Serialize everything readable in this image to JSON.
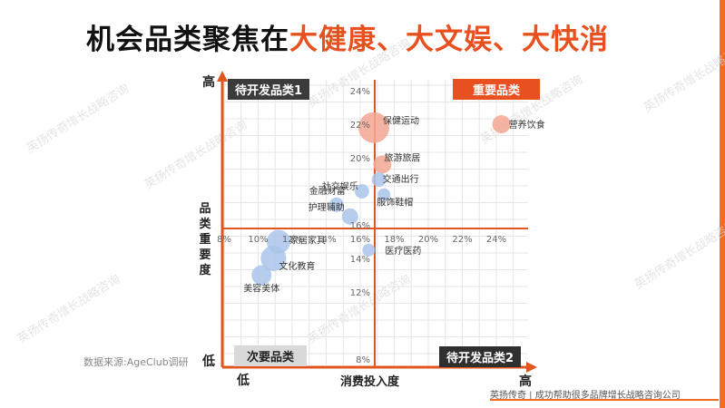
{
  "title": {
    "prefix": "机会品类聚焦在",
    "accent": "大健康、大文娱、大快消"
  },
  "watermark": "英扬传奇增长战略咨询",
  "axis_words": {
    "y_high": "高",
    "y_low": "低",
    "x_low": "低",
    "x_high": "高"
  },
  "xlabel": "消费投入度",
  "ylabel": "品类重要度",
  "quadrant_labels": {
    "top_left": "待开发品类1",
    "top_right": "重要品类",
    "bottom_left": "次要品类",
    "bottom_right": "待开发品类2"
  },
  "source": "数据来源:AgeClub调研",
  "footer": "英扬传奇 | 成功帮助很多品牌增长战略咨询公司",
  "colors": {
    "accent": "#e8501f",
    "axis": "#e0561e",
    "bubble_blue": "#aac4ea",
    "bubble_pink": "#f3a793",
    "dark_label": "#3b3b3b",
    "grey_label": "#d9d9d9"
  },
  "chart_data": {
    "type": "scatter",
    "xlabel": "消费投入度",
    "ylabel": "品类重要度",
    "xlim": [
      8,
      25
    ],
    "ylim": [
      7.5,
      25
    ],
    "x_ticks": [
      "8%",
      "10%",
      "12%",
      "14%",
      "16%",
      "18%",
      "20%",
      "22%",
      "24%"
    ],
    "x_tick_values": [
      8,
      10,
      12,
      14,
      16,
      18,
      20,
      22,
      24
    ],
    "y_ticks": [
      "8%",
      "12%",
      "14%",
      "16%",
      "20%",
      "22%",
      "24%"
    ],
    "y_tick_values": [
      8,
      12,
      14,
      16,
      20,
      22,
      24
    ],
    "grid": true,
    "points": [
      {
        "label": "保健运动",
        "x": 16.8,
        "y": 21.8,
        "size": 17,
        "color": "pink"
      },
      {
        "label": "营养饮食",
        "x": 24.3,
        "y": 22.0,
        "size": 10,
        "color": "pink"
      },
      {
        "label": "旅游旅居",
        "x": 17.3,
        "y": 19.6,
        "size": 10,
        "color": "pink"
      },
      {
        "label": "交通出行",
        "x": 17.1,
        "y": 18.7,
        "size": 8,
        "color": "blue"
      },
      {
        "label": "社交娱乐",
        "x": 16.1,
        "y": 18.0,
        "size": 8,
        "color": "blue"
      },
      {
        "label": "金融财富",
        "x": 14.6,
        "y": 17.2,
        "size": 8,
        "color": "blue"
      },
      {
        "label": "护理辅助",
        "x": 15.4,
        "y": 16.5,
        "size": 9,
        "color": "blue"
      },
      {
        "label": "服饰鞋帽",
        "x": 17.4,
        "y": 17.8,
        "size": 7,
        "color": "blue"
      },
      {
        "label": "家居家具",
        "x": 11.2,
        "y": 15.0,
        "size": 13,
        "color": "blue"
      },
      {
        "label": "文化教育",
        "x": 10.9,
        "y": 14.0,
        "size": 14,
        "color": "blue"
      },
      {
        "label": "美容美体",
        "x": 10.2,
        "y": 13.0,
        "size": 11,
        "color": "blue"
      },
      {
        "label": "医疗医药",
        "x": 16.5,
        "y": 14.5,
        "size": 7,
        "color": "blue"
      }
    ]
  }
}
